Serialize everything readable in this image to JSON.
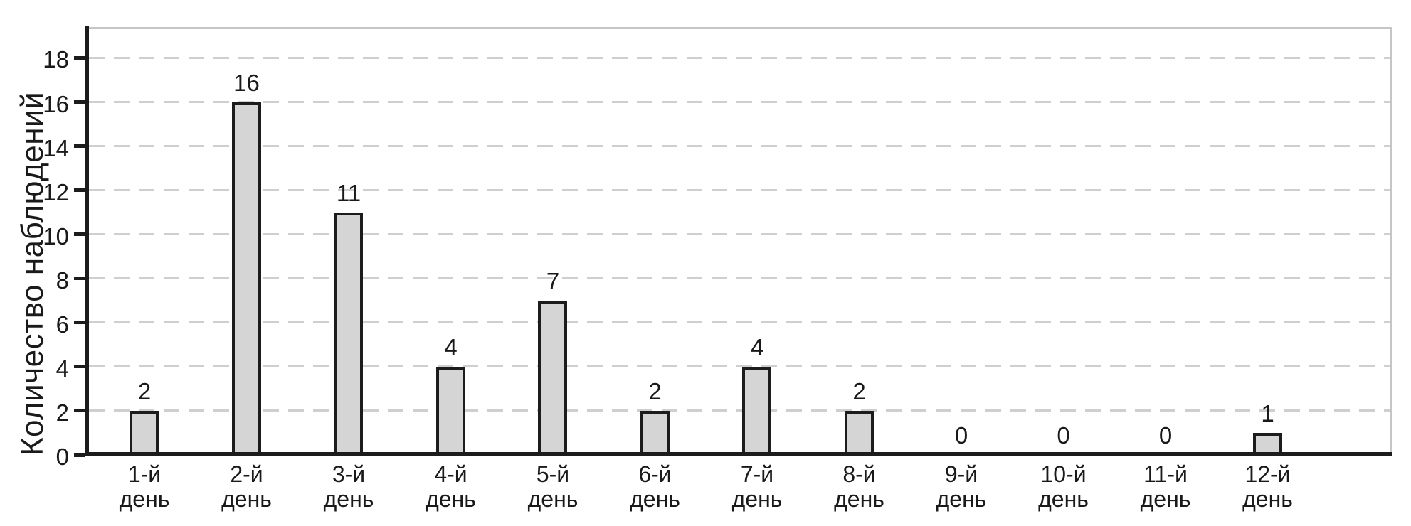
{
  "chart_data": {
    "type": "bar",
    "title": "",
    "ylabel": "Количество наблюдений",
    "xlabel": "",
    "categories": [
      "1-й",
      "2-й",
      "3-й",
      "4-й",
      "5-й",
      "6-й",
      "7-й",
      "8-й",
      "9-й",
      "10-й",
      "11-й",
      "12-й"
    ],
    "category_second_line": "день",
    "values": [
      2,
      16,
      11,
      4,
      7,
      2,
      4,
      2,
      0,
      0,
      0,
      1
    ],
    "yticks": [
      0,
      2,
      4,
      6,
      8,
      10,
      12,
      14,
      16,
      18
    ],
    "ylim": [
      0,
      19.4
    ],
    "grid": "horizontal-dashed",
    "legend_position": "none"
  },
  "style": {
    "background": "#ffffff",
    "text_color": "#1a1a1a",
    "bar_fill": "#d5d5d5",
    "bar_border": "#1c1c1c",
    "grid_color": "#cfcfcf",
    "minor_spine_color": "#c6c6c6",
    "axis_color": "#1c1c1c"
  }
}
